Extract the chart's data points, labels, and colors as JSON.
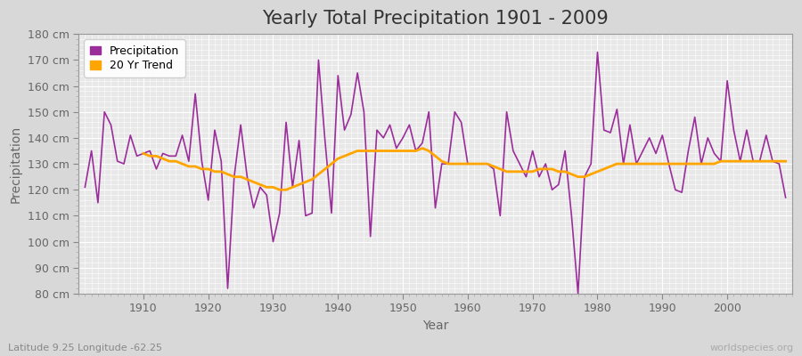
{
  "title": "Yearly Total Precipitation 1901 - 2009",
  "xlabel": "Year",
  "ylabel": "Precipitation",
  "subtitle": "Latitude 9.25 Longitude -62.25",
  "watermark": "worldspecies.org",
  "years": [
    1901,
    1902,
    1903,
    1904,
    1905,
    1906,
    1907,
    1908,
    1909,
    1910,
    1911,
    1912,
    1913,
    1914,
    1915,
    1916,
    1917,
    1918,
    1919,
    1920,
    1921,
    1922,
    1923,
    1924,
    1925,
    1926,
    1927,
    1928,
    1929,
    1930,
    1931,
    1932,
    1933,
    1934,
    1935,
    1936,
    1937,
    1938,
    1939,
    1940,
    1941,
    1942,
    1943,
    1944,
    1945,
    1946,
    1947,
    1948,
    1949,
    1950,
    1951,
    1952,
    1953,
    1954,
    1955,
    1956,
    1957,
    1958,
    1959,
    1960,
    1961,
    1962,
    1963,
    1964,
    1965,
    1966,
    1967,
    1968,
    1969,
    1970,
    1971,
    1972,
    1973,
    1974,
    1975,
    1976,
    1977,
    1978,
    1979,
    1980,
    1981,
    1982,
    1983,
    1984,
    1985,
    1986,
    1987,
    1988,
    1989,
    1990,
    1991,
    1992,
    1993,
    1994,
    1995,
    1996,
    1997,
    1998,
    1999,
    2000,
    2001,
    2002,
    2003,
    2004,
    2005,
    2006,
    2007,
    2008,
    2009
  ],
  "precipitation": [
    121,
    135,
    115,
    150,
    145,
    131,
    130,
    141,
    133,
    134,
    135,
    128,
    134,
    133,
    133,
    141,
    131,
    157,
    131,
    116,
    143,
    131,
    82,
    125,
    145,
    125,
    113,
    121,
    118,
    100,
    111,
    146,
    121,
    139,
    110,
    111,
    170,
    139,
    111,
    164,
    143,
    149,
    165,
    150,
    102,
    143,
    140,
    145,
    136,
    140,
    145,
    135,
    138,
    150,
    113,
    130,
    130,
    150,
    146,
    130,
    130,
    130,
    130,
    128,
    110,
    150,
    135,
    130,
    125,
    135,
    125,
    130,
    120,
    122,
    135,
    110,
    80,
    125,
    130,
    173,
    143,
    142,
    151,
    130,
    145,
    130,
    135,
    140,
    134,
    141,
    130,
    120,
    119,
    135,
    148,
    130,
    140,
    134,
    131,
    162,
    143,
    131,
    143,
    131,
    131,
    141,
    131,
    130,
    117
  ],
  "trend": [
    null,
    null,
    null,
    null,
    null,
    null,
    null,
    null,
    null,
    134,
    133,
    133,
    132,
    131,
    131,
    130,
    129,
    129,
    128,
    128,
    127,
    127,
    126,
    125,
    125,
    124,
    123,
    122,
    121,
    121,
    120,
    120,
    121,
    122,
    123,
    124,
    126,
    128,
    130,
    132,
    133,
    134,
    135,
    135,
    135,
    135,
    135,
    135,
    135,
    135,
    135,
    135,
    136,
    135,
    133,
    131,
    130,
    130,
    130,
    130,
    130,
    130,
    130,
    129,
    128,
    127,
    127,
    127,
    127,
    127,
    128,
    128,
    128,
    127,
    127,
    126,
    125,
    125,
    126,
    127,
    128,
    129,
    130,
    130,
    130,
    130,
    130,
    130,
    130,
    130,
    130,
    130,
    130,
    130,
    130,
    130,
    130,
    130,
    131,
    131,
    131,
    131,
    131,
    131,
    131,
    131,
    131,
    131,
    131
  ],
  "precip_color": "#9B2D9B",
  "trend_color": "#FFA500",
  "fig_bg_color": "#d8d8d8",
  "plot_bg_color": "#e8e8e8",
  "grid_color": "#ffffff",
  "ylim": [
    80,
    180
  ],
  "yticks": [
    80,
    90,
    100,
    110,
    120,
    130,
    140,
    150,
    160,
    170,
    180
  ],
  "xticks": [
    1910,
    1920,
    1930,
    1940,
    1950,
    1960,
    1970,
    1980,
    1990,
    2000
  ],
  "xlim": [
    1900,
    2010
  ],
  "title_fontsize": 15,
  "label_fontsize": 10,
  "tick_fontsize": 9,
  "legend_fontsize": 9,
  "tick_color": "#666666",
  "subtitle_color": "#888888",
  "watermark_color": "#aaaaaa"
}
